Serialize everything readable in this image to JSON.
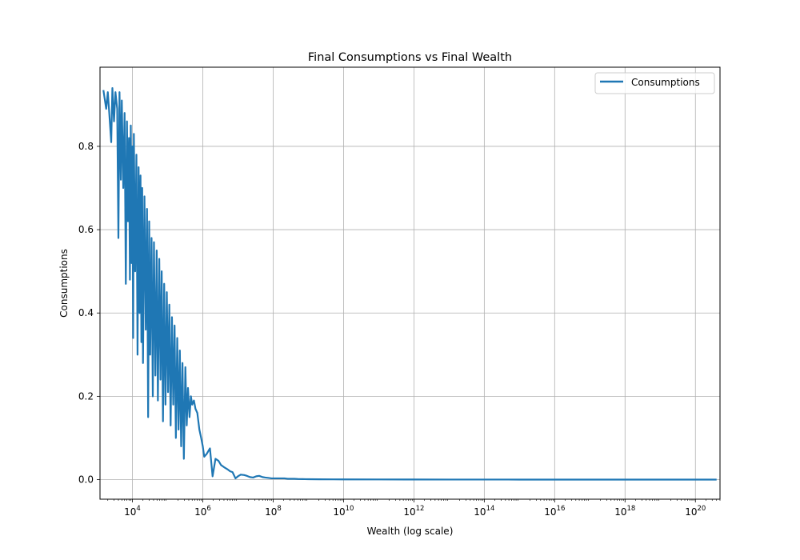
{
  "chart_data": {
    "type": "line",
    "title": "Final Consumptions vs Final Wealth",
    "xlabel": "Wealth (log scale)",
    "ylabel": "Consumptions",
    "x_scale": "log",
    "xlim": [
      1200,
      500000000000000000000
    ],
    "ylim": [
      -0.047,
      0.99
    ],
    "x_ticks": [
      {
        "value": 10000,
        "mantissa": "10",
        "exponent": "4"
      },
      {
        "value": 1000000,
        "mantissa": "10",
        "exponent": "6"
      },
      {
        "value": 100000000,
        "mantissa": "10",
        "exponent": "8"
      },
      {
        "value": 10000000000,
        "mantissa": "10",
        "exponent": "10"
      },
      {
        "value": 1000000000000,
        "mantissa": "10",
        "exponent": "12"
      },
      {
        "value": 100000000000000,
        "mantissa": "10",
        "exponent": "14"
      },
      {
        "value": 10000000000000000,
        "mantissa": "10",
        "exponent": "16"
      },
      {
        "value": 1000000000000000000,
        "mantissa": "10",
        "exponent": "18"
      },
      {
        "value": 100000000000000000000,
        "mantissa": "10",
        "exponent": "20"
      }
    ],
    "y_ticks": [
      {
        "value": 0.0,
        "label": "0.0"
      },
      {
        "value": 0.2,
        "label": "0.2"
      },
      {
        "value": 0.4,
        "label": "0.4"
      },
      {
        "value": 0.6,
        "label": "0.6"
      },
      {
        "value": 0.8,
        "label": "0.8"
      }
    ],
    "grid": true,
    "legend": {
      "position": "top-right"
    },
    "series": [
      {
        "name": "Consumptions",
        "color": "#1f77b4",
        "x": [
          1500,
          1800,
          2000,
          2200,
          2500,
          2700,
          3000,
          3300,
          3700,
          4000,
          4300,
          4700,
          5000,
          5500,
          6000,
          6500,
          7000,
          7500,
          8000,
          8500,
          9000,
          9500,
          10000,
          10500,
          11000,
          12000,
          13000,
          14000,
          15000,
          16000,
          17000,
          18000,
          19000,
          20000,
          22000,
          24000,
          26000,
          28000,
          30000,
          32000,
          35000,
          38000,
          41000,
          45000,
          49000,
          53000,
          58000,
          63000,
          68000,
          74000,
          80000,
          87000,
          95000,
          103000,
          112000,
          122000,
          133000,
          145000,
          158000,
          172000,
          188000,
          205000,
          223000,
          243000,
          265000,
          290000,
          320000,
          350000,
          380000,
          420000,
          460000,
          500000,
          560000,
          620000,
          700000,
          800000,
          900000,
          1000000,
          1100000,
          1300000,
          1600000,
          1900000,
          2300000,
          2800000,
          3300000,
          4000000,
          5000000,
          6000000,
          7000000,
          8500000,
          10000000,
          12000000,
          15000000,
          18000000,
          22000000,
          27000000,
          33000000,
          40000000,
          50000000,
          60000000,
          75000000,
          90000000,
          110000000,
          140000000,
          170000000,
          210000000,
          260000000,
          320000000,
          400000000,
          500000000,
          700000000,
          1000000000,
          2000000000,
          5000000000,
          10000000000,
          100000000000,
          1000000000000,
          10000000000000,
          100000000000000,
          1000000000000000,
          10000000000000000,
          100000000000000000,
          1000000000000000000,
          10000000000000000000,
          100000000000000000000,
          400000000000000000000
        ],
        "y": [
          0.935,
          0.89,
          0.93,
          0.88,
          0.81,
          0.94,
          0.86,
          0.93,
          0.89,
          0.58,
          0.93,
          0.72,
          0.91,
          0.7,
          0.88,
          0.47,
          0.86,
          0.62,
          0.82,
          0.48,
          0.85,
          0.52,
          0.8,
          0.34,
          0.83,
          0.5,
          0.78,
          0.3,
          0.75,
          0.4,
          0.73,
          0.33,
          0.7,
          0.28,
          0.68,
          0.36,
          0.65,
          0.15,
          0.62,
          0.3,
          0.58,
          0.2,
          0.57,
          0.25,
          0.55,
          0.19,
          0.53,
          0.24,
          0.5,
          0.14,
          0.47,
          0.18,
          0.45,
          0.21,
          0.42,
          0.13,
          0.39,
          0.18,
          0.37,
          0.1,
          0.34,
          0.12,
          0.31,
          0.08,
          0.28,
          0.05,
          0.27,
          0.13,
          0.22,
          0.15,
          0.2,
          0.18,
          0.19,
          0.17,
          0.16,
          0.12,
          0.1,
          0.08,
          0.055,
          0.062,
          0.075,
          0.008,
          0.05,
          0.045,
          0.035,
          0.03,
          0.025,
          0.02,
          0.018,
          0.003,
          0.008,
          0.012,
          0.011,
          0.009,
          0.006,
          0.005,
          0.008,
          0.009,
          0.006,
          0.005,
          0.004,
          0.003,
          0.003,
          0.003,
          0.003,
          0.003,
          0.002,
          0.002,
          0.002,
          0.0015,
          0.0012,
          0.001,
          0.0008,
          0.0006,
          0.0005,
          0.0004,
          0.0003,
          0.0002,
          0.0002,
          0.0001,
          0.0001,
          0.0001,
          0.0001,
          0.0001,
          0.0001,
          0.0001
        ]
      }
    ]
  }
}
